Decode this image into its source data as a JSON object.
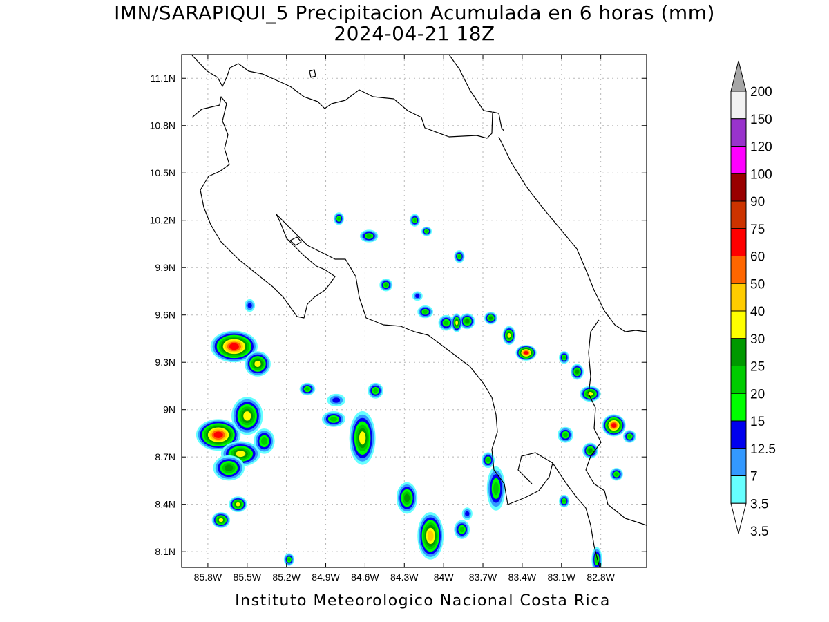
{
  "title": {
    "line1": "IMN/SARAPIQUI_5 Precipitacion Acumulada en 6 horas (mm)",
    "line2": "2024-04-21 18Z"
  },
  "footer": "Instituto Meteorologico Nacional Costa Rica",
  "map": {
    "lon_range": [
      -86.0,
      -82.45
    ],
    "lat_range": [
      8.0,
      11.25
    ],
    "lon_ticks": [
      {
        "value": -85.8,
        "label": "85.8W"
      },
      {
        "value": -85.5,
        "label": "85.5W"
      },
      {
        "value": -85.2,
        "label": "85.2W"
      },
      {
        "value": -84.9,
        "label": "84.9W"
      },
      {
        "value": -84.6,
        "label": "84.6W"
      },
      {
        "value": -84.3,
        "label": "84.3W"
      },
      {
        "value": -84.0,
        "label": "84W"
      },
      {
        "value": -83.7,
        "label": "83.7W"
      },
      {
        "value": -83.4,
        "label": "83.4W"
      },
      {
        "value": -83.1,
        "label": "83.1W"
      },
      {
        "value": -82.8,
        "label": "82.8W"
      }
    ],
    "lat_ticks": [
      {
        "value": 8.1,
        "label": "8.1N"
      },
      {
        "value": 8.4,
        "label": "8.4N"
      },
      {
        "value": 8.7,
        "label": "8.7N"
      },
      {
        "value": 9.0,
        "label": "9N"
      },
      {
        "value": 9.3,
        "label": "9.3N"
      },
      {
        "value": 9.6,
        "label": "9.6N"
      },
      {
        "value": 9.9,
        "label": "9.9N"
      },
      {
        "value": 10.2,
        "label": "10.2N"
      },
      {
        "value": 10.5,
        "label": "10.5N"
      },
      {
        "value": 10.8,
        "label": "10.8N"
      },
      {
        "value": 11.1,
        "label": "11.1N"
      }
    ],
    "grid": true,
    "units": "mm"
  },
  "legend": {
    "placement": "right",
    "max_label": "200",
    "bins": [
      {
        "label": "3.5",
        "color": "#ffffff"
      },
      {
        "label": "7",
        "color": "#66ffff"
      },
      {
        "label": "12.5",
        "color": "#3399ff"
      },
      {
        "label": "15",
        "color": "#0000ee"
      },
      {
        "label": "20",
        "color": "#00ff00"
      },
      {
        "label": "25",
        "color": "#00cc00"
      },
      {
        "label": "30",
        "color": "#009900"
      },
      {
        "label": "40",
        "color": "#ffff00"
      },
      {
        "label": "50",
        "color": "#ffcc00"
      },
      {
        "label": "60",
        "color": "#ff6600"
      },
      {
        "label": "75",
        "color": "#ff0000"
      },
      {
        "label": "90",
        "color": "#cc3300"
      },
      {
        "label": "100",
        "color": "#990000"
      },
      {
        "label": "120",
        "color": "#ff00ff"
      },
      {
        "label": "150",
        "color": "#9933cc"
      },
      {
        "label": "200",
        "color": "#f2f2f2"
      }
    ],
    "above_max_color": "#a6a6a6"
  },
  "precip_cells": [
    {
      "lon": -85.6,
      "lat": 9.4,
      "rx": 0.18,
      "ry": 0.1,
      "level": 10
    },
    {
      "lon": -85.42,
      "lat": 9.29,
      "rx": 0.1,
      "ry": 0.08,
      "level": 7
    },
    {
      "lon": -85.72,
      "lat": 8.84,
      "rx": 0.17,
      "ry": 0.1,
      "level": 10
    },
    {
      "lon": -85.5,
      "lat": 8.96,
      "rx": 0.12,
      "ry": 0.12,
      "level": 7
    },
    {
      "lon": -85.55,
      "lat": 8.72,
      "rx": 0.15,
      "ry": 0.08,
      "level": 7
    },
    {
      "lon": -85.37,
      "lat": 8.8,
      "rx": 0.08,
      "ry": 0.08,
      "level": 5
    },
    {
      "lon": -85.64,
      "lat": 8.63,
      "rx": 0.12,
      "ry": 0.08,
      "level": 6
    },
    {
      "lon": -85.57,
      "lat": 8.4,
      "rx": 0.07,
      "ry": 0.05,
      "level": 7
    },
    {
      "lon": -85.7,
      "lat": 8.3,
      "rx": 0.07,
      "ry": 0.05,
      "level": 7
    },
    {
      "lon": -84.62,
      "lat": 8.82,
      "rx": 0.1,
      "ry": 0.17,
      "level": 7
    },
    {
      "lon": -84.84,
      "lat": 8.94,
      "rx": 0.09,
      "ry": 0.05,
      "level": 5
    },
    {
      "lon": -84.82,
      "lat": 9.06,
      "rx": 0.07,
      "ry": 0.04,
      "level": 3
    },
    {
      "lon": -85.04,
      "lat": 9.13,
      "rx": 0.06,
      "ry": 0.04,
      "level": 5
    },
    {
      "lon": -84.52,
      "lat": 9.12,
      "rx": 0.06,
      "ry": 0.05,
      "level": 5
    },
    {
      "lon": -84.28,
      "lat": 8.44,
      "rx": 0.08,
      "ry": 0.1,
      "level": 6
    },
    {
      "lon": -84.1,
      "lat": 8.2,
      "rx": 0.1,
      "ry": 0.15,
      "level": 8
    },
    {
      "lon": -83.86,
      "lat": 8.24,
      "rx": 0.06,
      "ry": 0.06,
      "level": 5
    },
    {
      "lon": -83.82,
      "lat": 8.34,
      "rx": 0.04,
      "ry": 0.04,
      "level": 3
    },
    {
      "lon": -83.6,
      "lat": 8.5,
      "rx": 0.07,
      "ry": 0.14,
      "level": 5
    },
    {
      "lon": -83.66,
      "lat": 8.68,
      "rx": 0.05,
      "ry": 0.05,
      "level": 5
    },
    {
      "lon": -83.08,
      "lat": 8.42,
      "rx": 0.04,
      "ry": 0.04,
      "level": 5
    },
    {
      "lon": -83.07,
      "lat": 8.84,
      "rx": 0.06,
      "ry": 0.05,
      "level": 5
    },
    {
      "lon": -82.88,
      "lat": 8.74,
      "rx": 0.06,
      "ry": 0.05,
      "level": 6
    },
    {
      "lon": -82.68,
      "lat": 8.59,
      "rx": 0.05,
      "ry": 0.04,
      "level": 5
    },
    {
      "lon": -82.58,
      "lat": 8.83,
      "rx": 0.05,
      "ry": 0.04,
      "level": 5
    },
    {
      "lon": -82.7,
      "lat": 8.9,
      "rx": 0.09,
      "ry": 0.07,
      "level": 10
    },
    {
      "lon": -82.88,
      "lat": 9.1,
      "rx": 0.08,
      "ry": 0.05,
      "level": 7
    },
    {
      "lon": -82.98,
      "lat": 9.24,
      "rx": 0.05,
      "ry": 0.05,
      "level": 6
    },
    {
      "lon": -83.08,
      "lat": 9.33,
      "rx": 0.04,
      "ry": 0.04,
      "level": 5
    },
    {
      "lon": -83.37,
      "lat": 9.36,
      "rx": 0.08,
      "ry": 0.05,
      "level": 10
    },
    {
      "lon": -83.5,
      "lat": 9.47,
      "rx": 0.05,
      "ry": 0.06,
      "level": 7
    },
    {
      "lon": -83.82,
      "lat": 9.56,
      "rx": 0.06,
      "ry": 0.05,
      "level": 6
    },
    {
      "lon": -83.98,
      "lat": 9.55,
      "rx": 0.06,
      "ry": 0.05,
      "level": 5
    },
    {
      "lon": -83.64,
      "lat": 9.58,
      "rx": 0.05,
      "ry": 0.04,
      "level": 6
    },
    {
      "lon": -83.9,
      "lat": 9.55,
      "rx": 0.04,
      "ry": 0.06,
      "level": 7
    },
    {
      "lon": -84.14,
      "lat": 9.62,
      "rx": 0.06,
      "ry": 0.04,
      "level": 5
    },
    {
      "lon": -84.2,
      "lat": 9.72,
      "rx": 0.04,
      "ry": 0.03,
      "level": 3
    },
    {
      "lon": -84.44,
      "lat": 9.79,
      "rx": 0.05,
      "ry": 0.04,
      "level": 5
    },
    {
      "lon": -84.57,
      "lat": 10.1,
      "rx": 0.07,
      "ry": 0.04,
      "level": 5
    },
    {
      "lon": -84.8,
      "lat": 10.21,
      "rx": 0.04,
      "ry": 0.04,
      "level": 5
    },
    {
      "lon": -84.22,
      "lat": 10.2,
      "rx": 0.04,
      "ry": 0.04,
      "level": 5
    },
    {
      "lon": -84.13,
      "lat": 10.13,
      "rx": 0.04,
      "ry": 0.03,
      "level": 5
    },
    {
      "lon": -83.88,
      "lat": 9.97,
      "rx": 0.04,
      "ry": 0.04,
      "level": 5
    },
    {
      "lon": -85.48,
      "lat": 9.66,
      "rx": 0.04,
      "ry": 0.04,
      "level": 3
    },
    {
      "lon": -85.18,
      "lat": 8.05,
      "rx": 0.04,
      "ry": 0.04,
      "level": 5
    },
    {
      "lon": -82.83,
      "lat": 8.05,
      "rx": 0.04,
      "ry": 0.08,
      "level": 5
    }
  ]
}
